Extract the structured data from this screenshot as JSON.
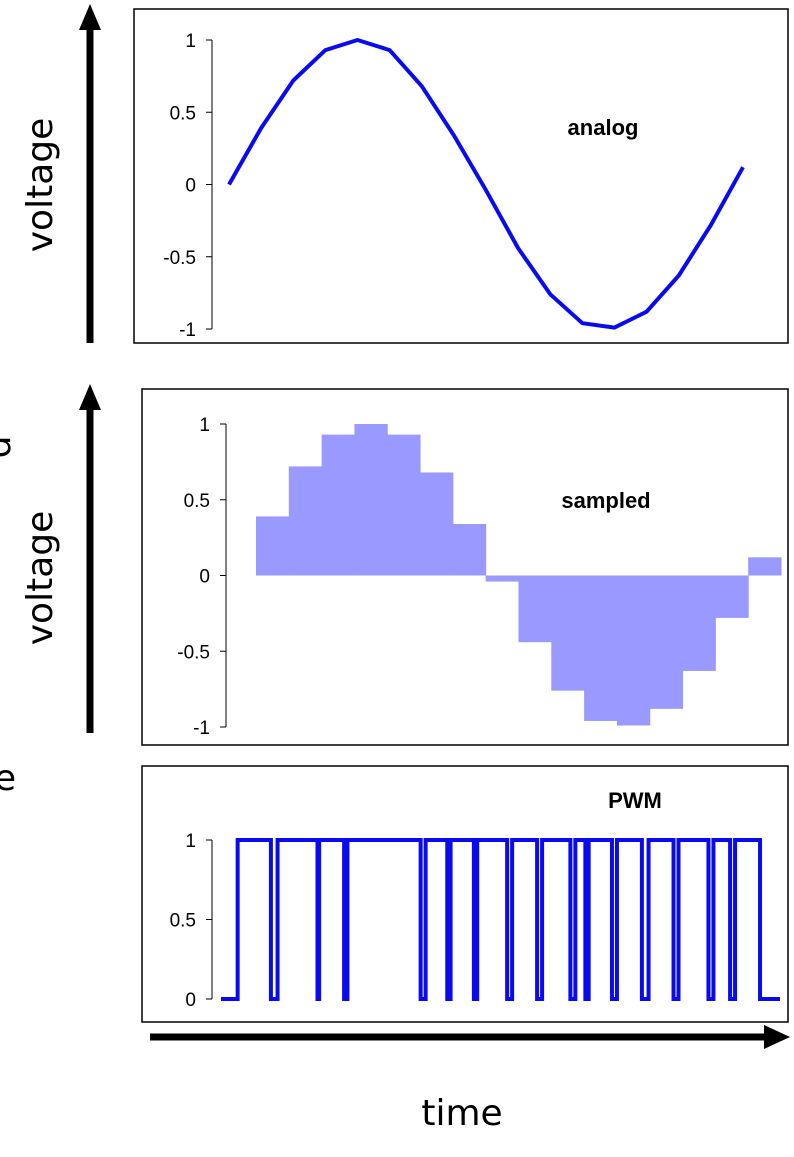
{
  "labels": {
    "y_axis_top": "voltage",
    "y_axis_middle": "voltage",
    "x_axis": "time",
    "cut_left_middle": "d",
    "cut_left_bottom": "e"
  },
  "colors": {
    "line": "#0a0af0",
    "fill": "#9999ff",
    "frame": "#000000"
  },
  "chart_data": [
    {
      "type": "line",
      "title": "analog",
      "ylim": [
        -1,
        1
      ],
      "yticks": [
        "1",
        "0.5",
        "0",
        "-0.5",
        "-1"
      ],
      "x": [
        0,
        1,
        2,
        3,
        4,
        5,
        6,
        7,
        8,
        9,
        10,
        11,
        12,
        13,
        14,
        15,
        16
      ],
      "values": [
        0,
        0.39,
        0.72,
        0.93,
        1.0,
        0.93,
        0.68,
        0.34,
        -0.04,
        -0.44,
        -0.76,
        -0.96,
        -0.99,
        -0.88,
        -0.63,
        -0.28,
        0.12
      ]
    },
    {
      "type": "bar",
      "title": "sampled",
      "ylim": [
        -1,
        1
      ],
      "yticks": [
        "1",
        "0.5",
        "0",
        "-0.5",
        "-1"
      ],
      "values": [
        0.39,
        0.72,
        0.93,
        1.0,
        0.93,
        0.68,
        0.34,
        -0.04,
        -0.44,
        -0.76,
        -0.96,
        -0.99,
        -0.88,
        -0.63,
        -0.28,
        0.12
      ]
    },
    {
      "type": "line",
      "title": "PWM",
      "ylim": [
        0,
        1
      ],
      "yticks": [
        "1",
        "0.5",
        "0"
      ],
      "high_intervals": [
        [
          0.5,
          1.5
        ],
        [
          1.7,
          2.9
        ],
        [
          2.95,
          3.7
        ],
        [
          3.8,
          6.0
        ],
        [
          6.15,
          6.8
        ],
        [
          6.9,
          7.6
        ],
        [
          7.7,
          8.6
        ],
        [
          8.75,
          9.5
        ],
        [
          9.65,
          10.5
        ],
        [
          10.65,
          10.95
        ],
        [
          11.05,
          11.75
        ],
        [
          11.9,
          12.65
        ],
        [
          12.85,
          13.6
        ],
        [
          13.75,
          14.65
        ],
        [
          14.8,
          15.3
        ],
        [
          15.45,
          16.2
        ]
      ],
      "xlim": [
        0,
        16.8
      ]
    }
  ]
}
